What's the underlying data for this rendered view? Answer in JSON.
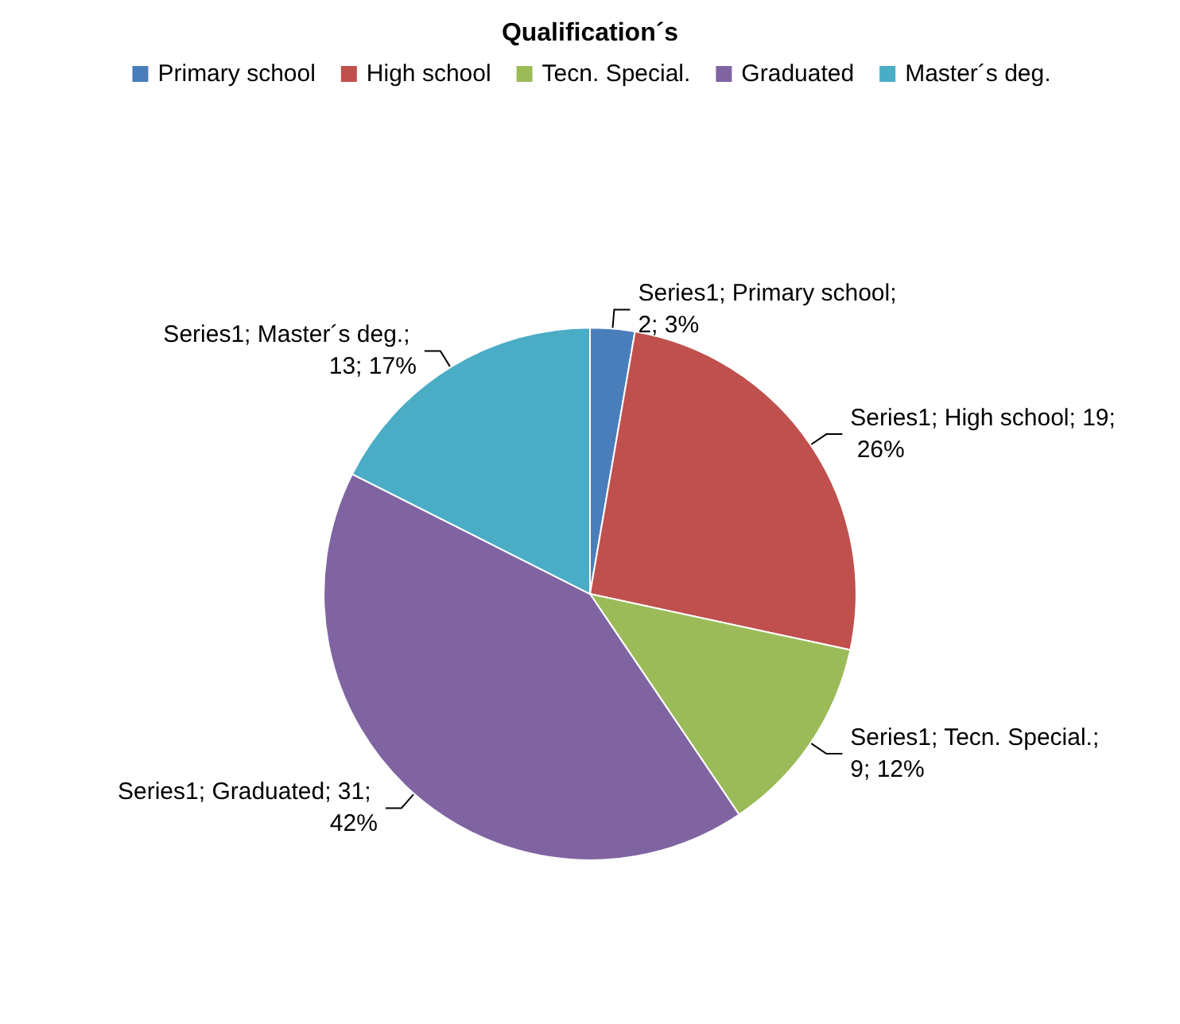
{
  "chart_data": {
    "type": "pie",
    "title": "Qualification´s",
    "categories": [
      "Primary school",
      "High school",
      "Tecn. Special.",
      "Graduated",
      "Master´s deg."
    ],
    "values": [
      2,
      19,
      9,
      31,
      13
    ],
    "colors": [
      "#4a7ebb",
      "#c0504d",
      "#9bbb59",
      "#8064a2",
      "#4bacc6"
    ],
    "value_labels": [
      "Series1; Primary school; 2; 3%",
      "Series1; High school; 19; 26%",
      "Series1; Tecn. Special.; 9; 12%",
      "Series1; Graduated; 31; 42%",
      "Series1; Master´s deg.; 13; 17%"
    ],
    "legend": "top"
  }
}
